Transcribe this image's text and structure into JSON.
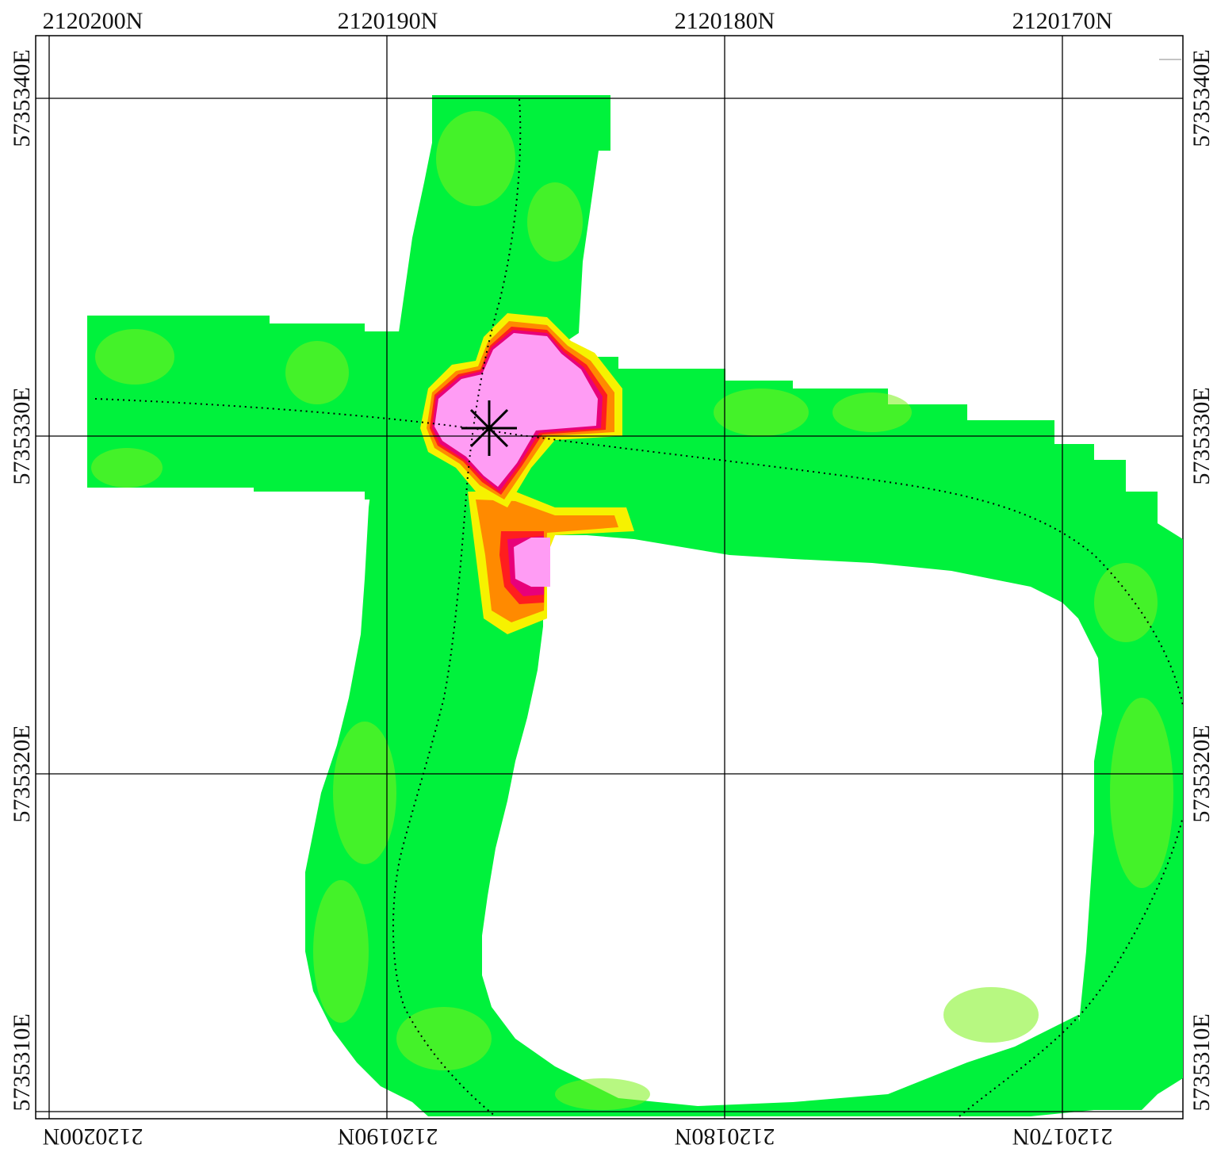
{
  "map": {
    "type": "contour-grid-map",
    "grid": {
      "northing_top": [
        "2120200N",
        "2120190N",
        "2120180N",
        "2120170N"
      ],
      "northing_bottom": [
        "2120200N",
        "2120190N",
        "2120180N",
        "2120170N"
      ],
      "easting_left": [
        "5735340E",
        "5735330E",
        "5735320E",
        "5735310E"
      ],
      "easting_right": [
        "5735340E",
        "5735330E",
        "5735320E",
        "5735310E"
      ]
    },
    "colors": {
      "background": "#ffffff",
      "low": "#00f23c",
      "mid": "#7cf21a",
      "yellow": "#f6f200",
      "orange": "#ff8a00",
      "red": "#ff1e1e",
      "magenta": "#e8007a",
      "high": "#ff9cf4",
      "grid": "#000000",
      "trace": "#000000"
    },
    "marker": {
      "type": "asterisk",
      "name": "target"
    }
  }
}
